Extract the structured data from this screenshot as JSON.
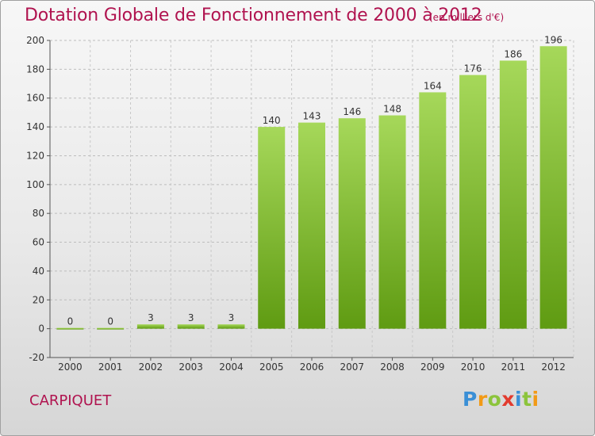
{
  "chart_data": {
    "type": "bar",
    "title": "Dotation Globale de Fonctionnement de 2000 à 2012",
    "unit": "(en milliers d'€)",
    "categories": [
      "2000",
      "2001",
      "2002",
      "2003",
      "2004",
      "2005",
      "2006",
      "2007",
      "2008",
      "2009",
      "2010",
      "2011",
      "2012"
    ],
    "values": [
      0,
      0,
      3,
      3,
      3,
      140,
      143,
      146,
      148,
      164,
      176,
      186,
      196
    ],
    "data_labels": [
      "0",
      "0",
      "3",
      "3",
      "3",
      "140",
      "143",
      "146",
      "148",
      "164",
      "176",
      "186",
      "196"
    ],
    "ylim": [
      -20,
      200
    ],
    "yticks": [
      -20,
      0,
      20,
      40,
      60,
      80,
      100,
      120,
      140,
      160,
      180,
      200
    ],
    "grid": true,
    "bar_color": "#7dbf2d",
    "xlabel": "",
    "ylabel": ""
  },
  "commune": "CARPIQUET",
  "logo": {
    "letters": [
      "P",
      "r",
      "o",
      "x",
      "i",
      "t",
      "i"
    ],
    "colors": [
      "#3a8fd6",
      "#f29a16",
      "#8cc43c",
      "#e23b2e",
      "#3a8fd6",
      "#8cc43c",
      "#f29a16"
    ]
  },
  "colors": {
    "text_accent": "#b0134f",
    "axis": "#555555"
  }
}
